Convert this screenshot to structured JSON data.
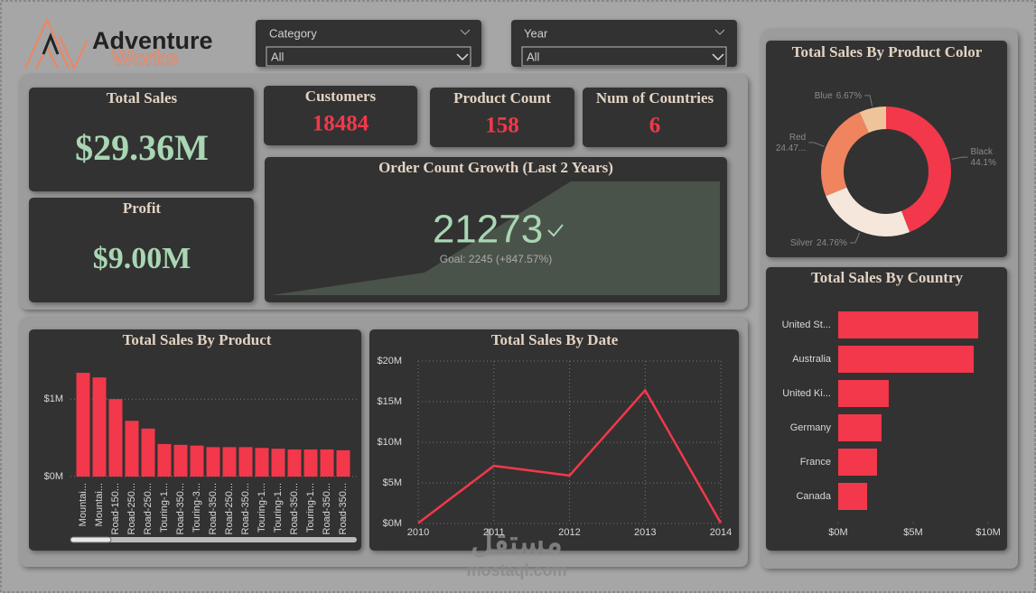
{
  "header": {
    "logo_top": "Adventure",
    "logo_bottom": "Works"
  },
  "slicers": [
    {
      "label": "Category",
      "value": "All"
    },
    {
      "label": "Year",
      "value": "All"
    }
  ],
  "kpis": [
    {
      "title": "Total Sales",
      "value": "$29.36M"
    },
    {
      "title": "Profit",
      "value": "$9.00M"
    },
    {
      "title": "Customers",
      "value": "18484"
    },
    {
      "title": "Product Count",
      "value": "158"
    },
    {
      "title": "Num of Countries",
      "value": "6"
    }
  ],
  "order_growth": {
    "title": "Order Count Growth (Last 2 Years)",
    "value": "21273",
    "goal": "Goal: 2245 (+847.57%)"
  },
  "watermark": {
    "logo": "مستقل",
    "site": "mostaql.com"
  },
  "chart_data": [
    {
      "type": "donut",
      "title": "Total Sales By Product Color",
      "categories": [
        "Black",
        "Silver",
        "Red",
        "Blue"
      ],
      "values": [
        44.1,
        24.76,
        24.47,
        6.67
      ],
      "value_labels": [
        "44.1%",
        "24.76%",
        "24.47...",
        "6.67%"
      ],
      "colors": [
        "#f2384a",
        "#f5e7dc",
        "#f0845f",
        "#f0c49a"
      ]
    },
    {
      "type": "bar",
      "orientation": "horizontal",
      "title": "Total Sales By Country",
      "categories": [
        "United St...",
        "Australia",
        "United Ki...",
        "Germany",
        "France",
        "Canada"
      ],
      "values": [
        9340000,
        9040000,
        3370000,
        2890000,
        2590000,
        1930000
      ],
      "color": "#f2384a",
      "xlim": [
        0,
        10000000
      ],
      "xticks": [
        {
          "value": 0,
          "label": "$0M"
        },
        {
          "value": 5000000,
          "label": "$5M"
        },
        {
          "value": 10000000,
          "label": "$10M"
        }
      ]
    },
    {
      "type": "bar",
      "title": "Total Sales By Product",
      "categories": [
        "Mountai...",
        "Mountai...",
        "Road-150...",
        "Road-250...",
        "Road-250...",
        "Touring-1...",
        "Road-350...",
        "Touring-3...",
        "Road-350...",
        "Road-250...",
        "Road-350...",
        "Touring-1...",
        "Touring-1...",
        "Road-350...",
        "Touring-1...",
        "Road-350...",
        "Road-350..."
      ],
      "values": [
        1340000,
        1280000,
        1000000,
        720000,
        620000,
        420000,
        410000,
        400000,
        380000,
        380000,
        380000,
        370000,
        360000,
        350000,
        350000,
        350000,
        340000
      ],
      "color": "#f2384a",
      "ylim": [
        0,
        1550000
      ],
      "yticks": [
        {
          "value": 0,
          "label": "$0M"
        },
        {
          "value": 1000000,
          "label": "$1M"
        }
      ],
      "grid": true
    },
    {
      "type": "line",
      "title": "Total Sales By Date",
      "x": [
        2010,
        2011,
        2012,
        2013,
        2014
      ],
      "values": [
        40000,
        7100000,
        5900000,
        16400000,
        50000
      ],
      "color": "#f2384a",
      "xlim": [
        2010,
        2014
      ],
      "xticks": [
        2010,
        2011,
        2012,
        2013,
        2014
      ],
      "ylim": [
        0,
        20000000
      ],
      "yticks": [
        {
          "value": 0,
          "label": "$0M"
        },
        {
          "value": 5000000,
          "label": "$5M"
        },
        {
          "value": 10000000,
          "label": "$10M"
        },
        {
          "value": 15000000,
          "label": "$15M"
        },
        {
          "value": 20000000,
          "label": "$20M"
        }
      ],
      "grid": true
    }
  ]
}
